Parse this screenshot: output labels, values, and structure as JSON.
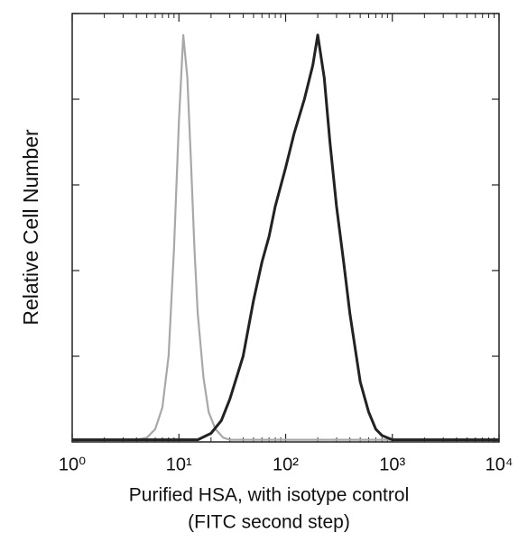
{
  "chart_data": {
    "type": "line",
    "xscale": "log",
    "ylabel": "Relative Cell Number",
    "xlabel": [
      "Purified HSA, with isotype control",
      "(FITC second step)"
    ],
    "xlim": [
      1,
      10000
    ],
    "xticks": [
      {
        "value": 1,
        "label": "10⁰"
      },
      {
        "value": 10,
        "label": "10¹"
      },
      {
        "value": 100,
        "label": "10²"
      },
      {
        "value": 1000,
        "label": "10³"
      },
      {
        "value": 10000,
        "label": "10⁴"
      }
    ],
    "xminorticks": [
      2,
      3,
      4,
      5,
      6,
      7,
      8,
      9,
      20,
      30,
      40,
      50,
      60,
      70,
      80,
      90,
      200,
      300,
      400,
      500,
      600,
      700,
      800,
      900,
      2000,
      3000,
      4000,
      5000,
      6000,
      7000,
      8000,
      9000
    ],
    "ylim": [
      0,
      100
    ],
    "yticks": [
      0,
      20,
      40,
      60,
      80,
      100
    ],
    "series": [
      {
        "color": "#a8a8a8",
        "x": [
          1,
          4,
          5,
          6,
          7,
          8,
          9,
          10,
          11,
          12,
          13,
          14,
          15,
          17,
          19,
          22,
          26,
          30,
          10000
        ],
        "values": [
          0.5,
          0.5,
          1,
          3,
          8,
          20,
          45,
          75,
          95,
          85,
          65,
          45,
          30,
          15,
          7,
          3,
          1,
          0.5,
          0.5
        ]
      },
      {
        "color": "#222222",
        "x": [
          1,
          15,
          20,
          25,
          30,
          40,
          50,
          60,
          70,
          80,
          100,
          120,
          150,
          180,
          200,
          230,
          260,
          300,
          350,
          400,
          500,
          600,
          700,
          800,
          1000,
          10000
        ],
        "values": [
          0.5,
          0.5,
          2,
          5,
          10,
          20,
          33,
          42,
          48,
          55,
          64,
          72,
          80,
          88,
          95,
          85,
          70,
          55,
          42,
          30,
          14,
          7,
          3,
          1.5,
          0.5,
          0.5
        ]
      }
    ]
  }
}
